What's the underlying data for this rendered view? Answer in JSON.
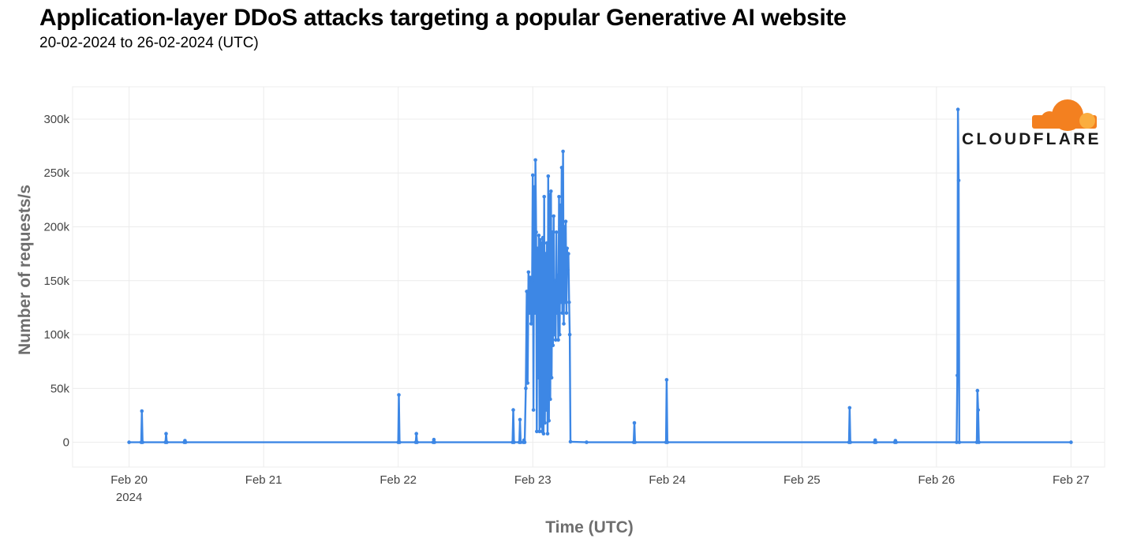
{
  "header": {
    "title": "Application-layer DDoS attacks targeting a popular Generative AI website",
    "subtitle": "20-02-2024 to 26-02-2024 (UTC)"
  },
  "logo": {
    "text": "CLOUDFLARE",
    "colors": {
      "cloud_main": "#f38020",
      "cloud_light": "#faad3f",
      "text": "#1a1a1a"
    }
  },
  "chart_data": {
    "type": "line",
    "xlabel": "Time (UTC)",
    "ylabel": "Number of requests/s",
    "x_unit": "days since Feb 20 2024 00:00 UTC",
    "xlim": [
      -0.42,
      7.25
    ],
    "ylim": [
      -23000,
      330000
    ],
    "x_ticks": [
      {
        "x": 0,
        "label": "Feb 20",
        "sublabel": "2024"
      },
      {
        "x": 1,
        "label": "Feb 21"
      },
      {
        "x": 2,
        "label": "Feb 22"
      },
      {
        "x": 3,
        "label": "Feb 23"
      },
      {
        "x": 4,
        "label": "Feb 24"
      },
      {
        "x": 5,
        "label": "Feb 25"
      },
      {
        "x": 6,
        "label": "Feb 26"
      },
      {
        "x": 7,
        "label": "Feb 27"
      }
    ],
    "y_ticks": [
      {
        "y": 0,
        "label": "0"
      },
      {
        "y": 50000,
        "label": "50k"
      },
      {
        "y": 100000,
        "label": "100k"
      },
      {
        "y": 150000,
        "label": "150k"
      },
      {
        "y": 200000,
        "label": "200k"
      },
      {
        "y": 250000,
        "label": "250k"
      },
      {
        "y": 300000,
        "label": "300k"
      }
    ],
    "grid": true,
    "series": [
      {
        "name": "requests/s",
        "color": "#3d87e5",
        "points": [
          [
            0.0,
            0
          ],
          [
            0.09,
            0
          ],
          [
            0.095,
            29000
          ],
          [
            0.1,
            0
          ],
          [
            0.27,
            0
          ],
          [
            0.275,
            8000
          ],
          [
            0.28,
            0
          ],
          [
            0.41,
            0
          ],
          [
            0.415,
            1500
          ],
          [
            0.42,
            0
          ],
          [
            2.0,
            0
          ],
          [
            2.005,
            44000
          ],
          [
            2.01,
            0
          ],
          [
            2.13,
            0
          ],
          [
            2.135,
            8000
          ],
          [
            2.14,
            0
          ],
          [
            2.26,
            0
          ],
          [
            2.265,
            2500
          ],
          [
            2.27,
            0
          ],
          [
            2.85,
            0
          ],
          [
            2.855,
            30000
          ],
          [
            2.86,
            0
          ],
          [
            2.9,
            0
          ],
          [
            2.905,
            21000
          ],
          [
            2.91,
            0
          ],
          [
            2.93,
            0
          ],
          [
            2.935,
            2000
          ],
          [
            2.94,
            0
          ],
          [
            2.948,
            50000
          ],
          [
            2.955,
            140000
          ],
          [
            2.962,
            55000
          ],
          [
            2.968,
            158000
          ],
          [
            2.975,
            120000
          ],
          [
            2.982,
            153000
          ],
          [
            2.988,
            110000
          ],
          [
            2.995,
            150000
          ],
          [
            3.0,
            248000
          ],
          [
            3.005,
            30000
          ],
          [
            3.01,
            237000
          ],
          [
            3.015,
            120000
          ],
          [
            3.02,
            262000
          ],
          [
            3.025,
            195000
          ],
          [
            3.03,
            10000
          ],
          [
            3.035,
            180000
          ],
          [
            3.04,
            60000
          ],
          [
            3.045,
            192000
          ],
          [
            3.05,
            10000
          ],
          [
            3.055,
            188000
          ],
          [
            3.06,
            15000
          ],
          [
            3.065,
            185000
          ],
          [
            3.07,
            10000
          ],
          [
            3.075,
            190000
          ],
          [
            3.08,
            8000
          ],
          [
            3.085,
            228000
          ],
          [
            3.09,
            18000
          ],
          [
            3.095,
            175000
          ],
          [
            3.1,
            30000
          ],
          [
            3.105,
            185000
          ],
          [
            3.11,
            8000
          ],
          [
            3.115,
            247000
          ],
          [
            3.12,
            20000
          ],
          [
            3.125,
            230000
          ],
          [
            3.13,
            40000
          ],
          [
            3.135,
            233000
          ],
          [
            3.14,
            60000
          ],
          [
            3.145,
            195000
          ],
          [
            3.15,
            90000
          ],
          [
            3.155,
            210000
          ],
          [
            3.16,
            100000
          ],
          [
            3.165,
            150000
          ],
          [
            3.17,
            95000
          ],
          [
            3.175,
            195000
          ],
          [
            3.18,
            120000
          ],
          [
            3.185,
            155000
          ],
          [
            3.19,
            95000
          ],
          [
            3.195,
            228000
          ],
          [
            3.2,
            100000
          ],
          [
            3.205,
            220000
          ],
          [
            3.21,
            130000
          ],
          [
            3.215,
            255000
          ],
          [
            3.22,
            120000
          ],
          [
            3.225,
            270000
          ],
          [
            3.23,
            110000
          ],
          [
            3.235,
            200000
          ],
          [
            3.24,
            130000
          ],
          [
            3.245,
            205000
          ],
          [
            3.25,
            120000
          ],
          [
            3.255,
            180000
          ],
          [
            3.26,
            160000
          ],
          [
            3.265,
            175000
          ],
          [
            3.27,
            130000
          ],
          [
            3.275,
            100000
          ],
          [
            3.28,
            500
          ],
          [
            3.4,
            0
          ],
          [
            3.75,
            0
          ],
          [
            3.755,
            18000
          ],
          [
            3.76,
            0
          ],
          [
            3.99,
            0
          ],
          [
            3.995,
            58000
          ],
          [
            4.0,
            0
          ],
          [
            5.35,
            0
          ],
          [
            5.355,
            32000
          ],
          [
            5.36,
            0
          ],
          [
            5.54,
            0
          ],
          [
            5.545,
            2000
          ],
          [
            5.55,
            0
          ],
          [
            5.69,
            0
          ],
          [
            5.695,
            1500
          ],
          [
            5.7,
            0
          ],
          [
            6.15,
            0
          ],
          [
            6.155,
            62000
          ],
          [
            6.16,
            309000
          ],
          [
            6.165,
            243000
          ],
          [
            6.17,
            0
          ],
          [
            6.3,
            0
          ],
          [
            6.305,
            48000
          ],
          [
            6.31,
            30000
          ],
          [
            6.315,
            0
          ],
          [
            7.0,
            0
          ]
        ]
      }
    ]
  }
}
